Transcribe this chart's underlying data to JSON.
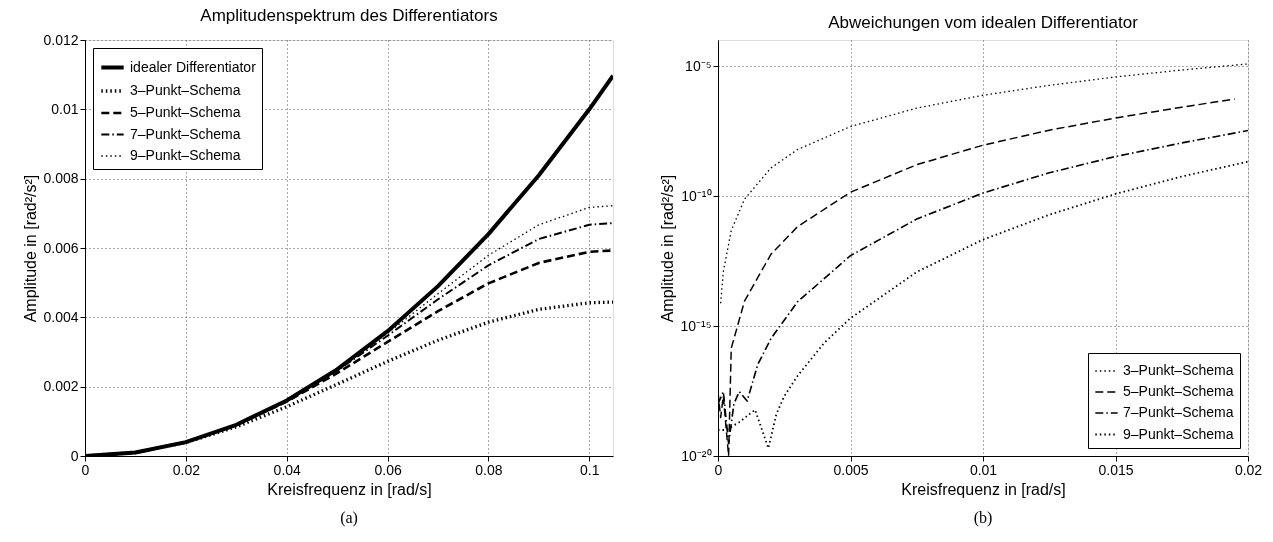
{
  "chart_data": [
    {
      "type": "line",
      "title": "Amplitudenspektrum des Differentiators",
      "xlabel": "Kreisfrequenz in [rad/s]",
      "ylabel": "Amplitude in [rad²/s²]",
      "x": [
        0,
        0.01,
        0.02,
        0.03,
        0.04,
        0.05,
        0.06,
        0.07,
        0.08,
        0.09,
        0.1,
        0.1047
      ],
      "series": [
        {
          "name": "idealer Differentiator",
          "color": "#000000",
          "line_style": "solid",
          "values": [
            0,
            0.0001,
            0.0004,
            0.0009,
            0.0016,
            0.0025,
            0.0036,
            0.0049,
            0.0064,
            0.0081,
            0.01,
            0.01097
          ]
        },
        {
          "name": "3–Punkt–Schema",
          "color": "#000000",
          "line_style": "dotted",
          "values": [
            0,
            0.0001,
            0.00039,
            0.00084,
            0.00142,
            0.00207,
            0.00273,
            0.00334,
            0.00386,
            0.00423,
            0.00442,
            0.00444
          ]
        },
        {
          "name": "5–Punkt–Schema",
          "color": "#000000",
          "line_style": "dashed",
          "values": [
            0,
            0.0001,
            0.0004,
            0.00089,
            0.00157,
            0.00239,
            0.00329,
            0.00418,
            0.00498,
            0.00557,
            0.00589,
            0.00593
          ]
        },
        {
          "name": "7–Punkt–Schema",
          "color": "#000000",
          "line_style": "dashdot",
          "values": [
            0,
            0.0001,
            0.0004,
            0.0009,
            0.00159,
            0.00246,
            0.00347,
            0.00452,
            0.0055,
            0.00626,
            0.00667,
            0.00672
          ]
        },
        {
          "name": "9–Punkt–Schema",
          "color": "#000000",
          "line_style": "dotted",
          "values": [
            0,
            0.0001,
            0.0004,
            0.0009,
            0.0016,
            0.00249,
            0.00354,
            0.00468,
            0.00579,
            0.00667,
            0.00717,
            0.00722
          ]
        }
      ],
      "xlim": [
        0,
        0.1047
      ],
      "xticks": [
        0,
        0.02,
        0.04,
        0.06,
        0.08,
        0.1
      ],
      "ylim": [
        0,
        0.012
      ],
      "yticks": [
        0,
        0.002,
        0.004,
        0.006,
        0.008,
        0.01,
        0.012
      ],
      "grid": true,
      "legend": "top left",
      "annotations": [
        "(a)"
      ]
    },
    {
      "type": "line",
      "title": "Abweichungen vom idealen Differentiator",
      "xlabel": "Kreisfrequenz in [rad/s]",
      "ylabel": "Amplitude in [rad²/s²]",
      "log": true,
      "series": [
        {
          "name": "3–Punkt–Schema",
          "color": "#000000",
          "line_style": "dotted",
          "x": [
            0.0001,
            0.0002,
            0.0005,
            0.001,
            0.002,
            0.003,
            0.005,
            0.0075,
            0.01,
            0.0125,
            0.015,
            0.0175,
            0.02
          ],
          "values": [
            7.5e-15,
            1.2e-13,
            4.7e-12,
            7.5e-11,
            1.2e-09,
            6.1e-09,
            4.7e-08,
            2.4e-07,
            7.5e-07,
            1.8e-06,
            3.8e-06,
            7e-06,
            1.2e-05
          ]
        },
        {
          "name": "5–Punkt–Schema",
          "color": "#000000",
          "line_style": "dashed",
          "x": [
            0,
            0.0001,
            0.0002,
            0.0004,
            0.0005,
            0.001,
            0.002,
            0.003,
            0.005,
            0.0075,
            0.01,
            0.0125,
            0.015,
            0.0175,
            0.0195
          ],
          "values": [
            3e-18,
            3e-19,
            2e-18,
            1e-20,
            1.4e-16,
            9e-15,
            5.8e-13,
            6.6e-12,
            1.4e-10,
            1.6e-09,
            9e-09,
            3.4e-08,
            1e-07,
            2.6e-07,
            5.4e-07
          ]
        },
        {
          "name": "7–Punkt–Schema",
          "color": "#000000",
          "line_style": "dashdot",
          "x": [
            0,
            0.0002,
            0.0004,
            0.0006,
            0.0008,
            0.0011,
            0.0015,
            0.002,
            0.003,
            0.005,
            0.0075,
            0.01,
            0.0125,
            0.015,
            0.0175,
            0.02
          ],
          "values": [
            1e-18,
            3e-18,
            3e-20,
            1e-18,
            3e-18,
            1.3e-18,
            3.3e-17,
            3.3e-16,
            8.5e-15,
            5.1e-13,
            1.3e-11,
            1.3e-10,
            7.8e-10,
            3.3e-09,
            1.1e-08,
            3.3e-08
          ]
        },
        {
          "name": "9–Punkt–Schema",
          "color": "#000000",
          "line_style": "dotted",
          "x": [
            0,
            0.0003,
            0.0008,
            0.0014,
            0.0019,
            0.0022,
            0.0025,
            0.003,
            0.004,
            0.005,
            0.0075,
            0.01,
            0.0125,
            0.015,
            0.0175,
            0.02
          ],
          "values": [
            1e-19,
            1e-19,
            2e-19,
            6e-19,
            2e-20,
            4e-19,
            2e-18,
            1.2e-17,
            2.2e-16,
            2e-15,
            1.2e-13,
            2.1e-12,
            1.9e-11,
            1.2e-10,
            5.6e-10,
            2.1e-09
          ]
        }
      ],
      "xlim": [
        0,
        0.02
      ],
      "xticks": [
        0,
        0.005,
        0.01,
        0.015,
        0.02
      ],
      "ylim": [
        1e-20,
        0.0001
      ],
      "yticks": [
        {
          "value": 1e-20,
          "label": "10⁻²⁰"
        },
        {
          "value": 1e-15,
          "label": "10⁻¹⁵"
        },
        {
          "value": 1e-10,
          "label": "10⁻¹⁰"
        },
        {
          "value": 1e-05,
          "label": "10⁻⁵"
        }
      ],
      "grid": true,
      "legend": "bottom right",
      "annotations": [
        "(b)"
      ]
    }
  ]
}
